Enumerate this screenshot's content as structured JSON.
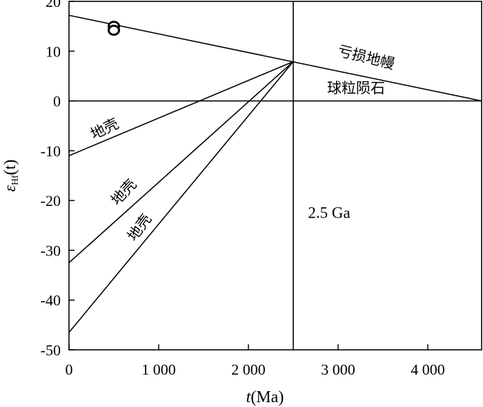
{
  "chart_data": {
    "type": "line",
    "xlim": [
      0,
      4600
    ],
    "ylim": [
      -50,
      20
    ],
    "xticks": [
      0,
      1000,
      2000,
      3000,
      4000
    ],
    "xtick_labels": [
      "0",
      "1 000",
      "2 000",
      "3 000",
      "4 000"
    ],
    "yticks": [
      20,
      10,
      0,
      -10,
      -20,
      -30,
      -40,
      -50
    ],
    "ytick_labels": [
      "20",
      "10",
      "0",
      "-10",
      "-20",
      "-30",
      "-40",
      "-50"
    ],
    "xlabel": {
      "italic": "t",
      "rest": "(Ma)"
    },
    "ylabel": {
      "epsilon": "ε",
      "sub": "Hf",
      "rest": "(t)"
    },
    "grid": false,
    "series": [
      {
        "name": "亏损地幔",
        "x": [
          0,
          4600
        ],
        "y": [
          17.2,
          0
        ]
      },
      {
        "name": "球粒陨石",
        "x": [
          0,
          4600
        ],
        "y": [
          0,
          0
        ]
      },
      {
        "name": "地壳",
        "x": [
          0,
          2500
        ],
        "y": [
          -11,
          7.9
        ]
      },
      {
        "name": "地壳",
        "x": [
          0,
          2500
        ],
        "y": [
          -32.5,
          7.9
        ]
      },
      {
        "name": "地壳",
        "x": [
          0,
          2500
        ],
        "y": [
          -46.5,
          7.9
        ]
      }
    ],
    "vertical_line": {
      "x": 2500,
      "label": "2.5 Ga"
    },
    "scatter": [
      {
        "x": 500,
        "y": 15.0
      },
      {
        "x": 500,
        "y": 14.2
      }
    ],
    "annotations": [
      {
        "text": "亏损地幔",
        "x": 3300,
        "y": 7.8,
        "rotate": 14
      },
      {
        "text": "球粒陨石",
        "x": 3200,
        "y": 1.6,
        "rotate": 0
      },
      {
        "text": "地壳",
        "x": 420,
        "y": -6.5,
        "rotate": -26
      },
      {
        "text": "地壳",
        "x": 650,
        "y": -19.0,
        "rotate": -47
      },
      {
        "text": "地壳",
        "x": 830,
        "y": -26.0,
        "rotate": -54
      },
      {
        "text": "2.5 Ga",
        "x": 2900,
        "y": -23.5,
        "rotate": 0,
        "style": "ga"
      }
    ]
  }
}
